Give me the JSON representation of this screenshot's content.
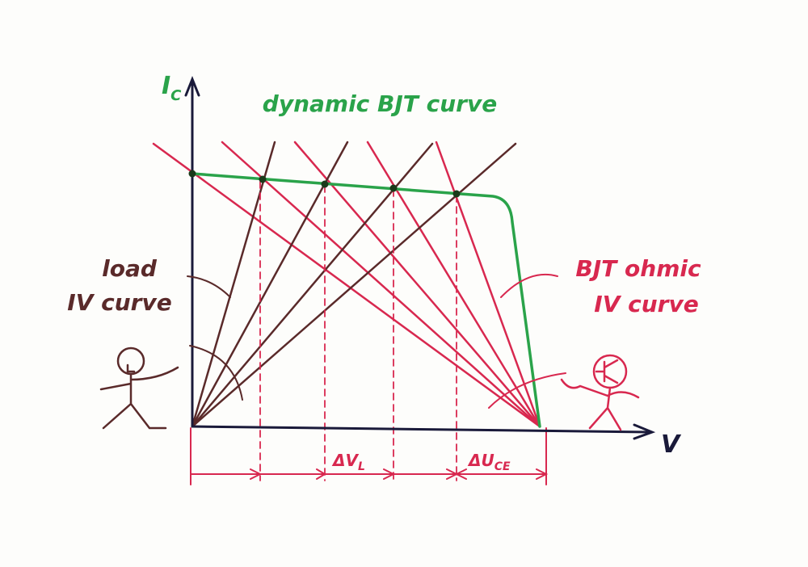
{
  "axis_labels": {
    "y": {
      "main": "I",
      "sub": "C"
    },
    "x": "V"
  },
  "labels": {
    "dynamic_curve": "dynamic BJT curve",
    "load_curve": [
      "load",
      "IV curve"
    ],
    "ohmic_curve": [
      "BJT ohmic",
      "IV curve"
    ],
    "delta_vl": {
      "main": "ΔV",
      "sub": "L"
    },
    "delta_uce": {
      "main": "ΔU",
      "sub": "CE"
    }
  }
}
